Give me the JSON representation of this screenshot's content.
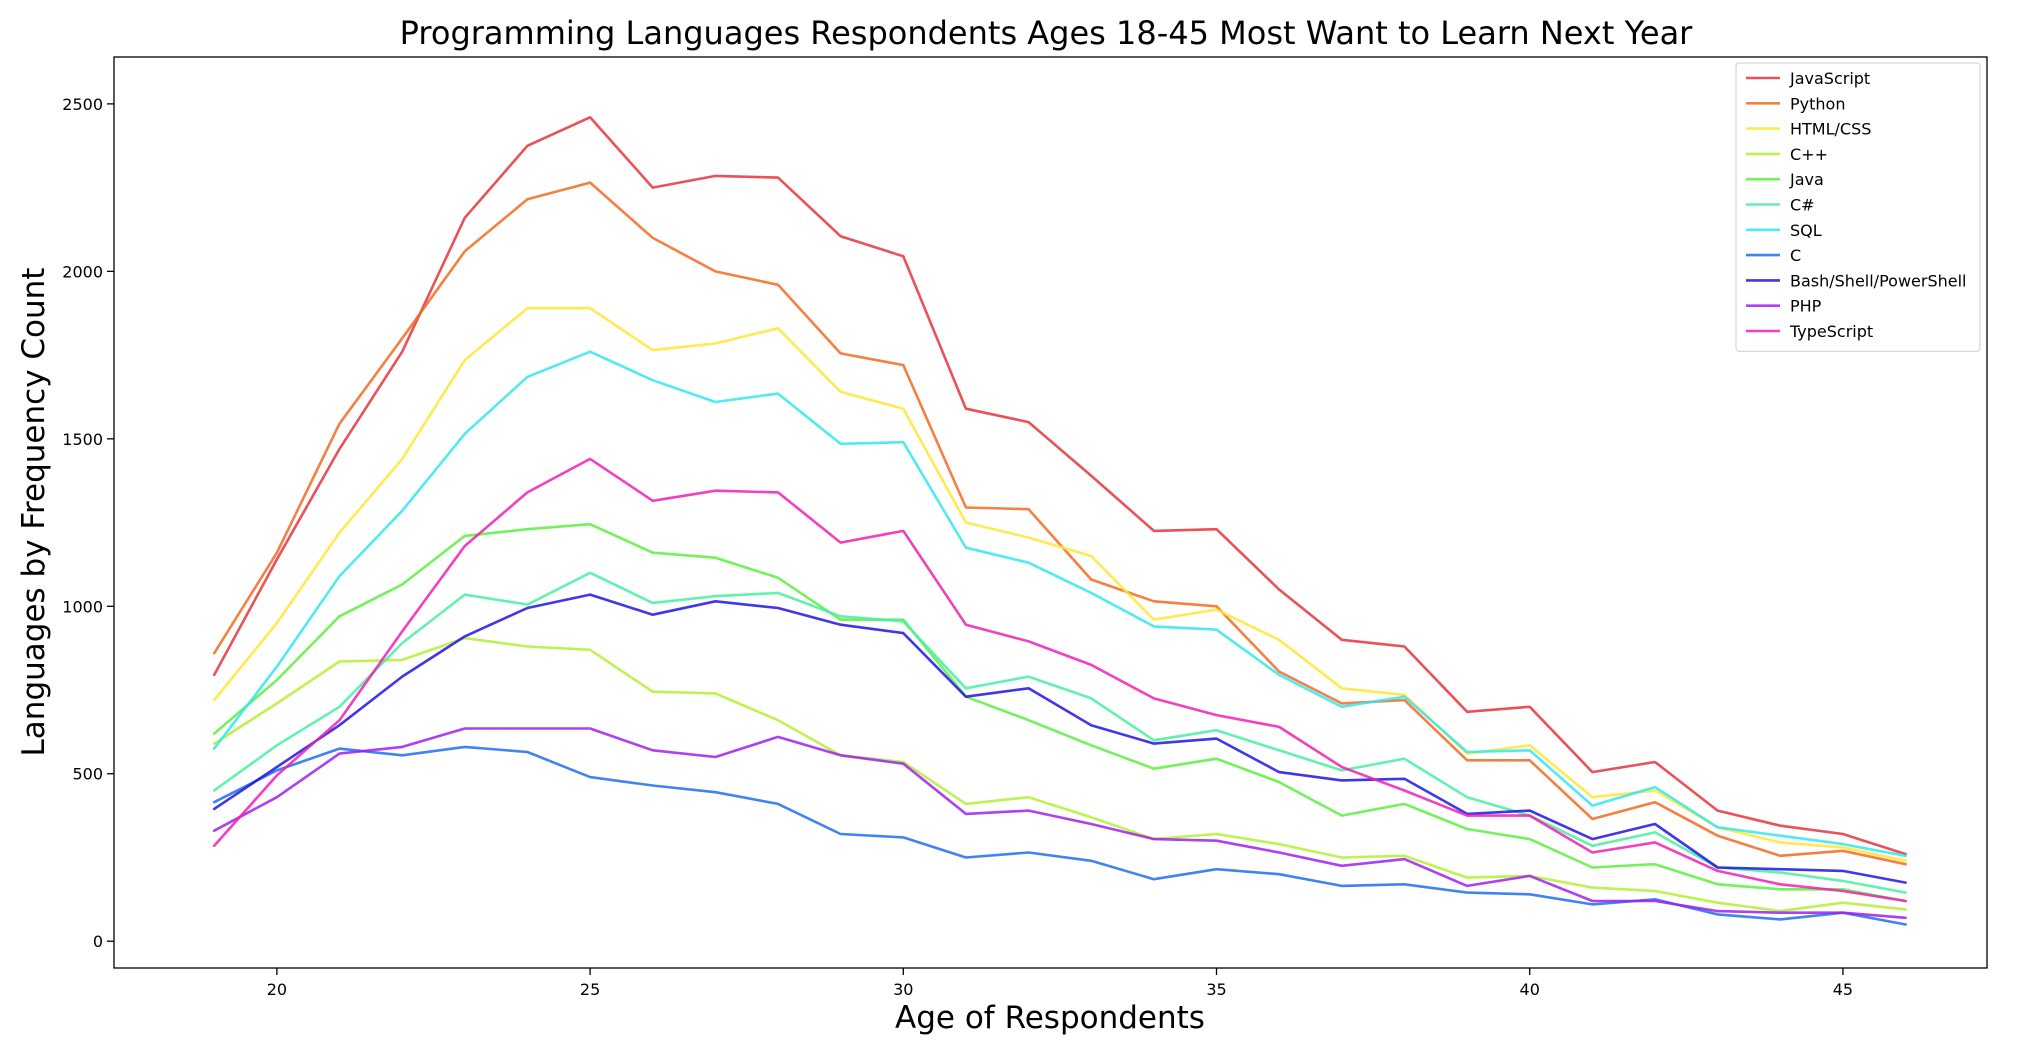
{
  "chart_data": {
    "type": "line",
    "title": "Programming Languages Respondents Ages 18-45 Most Want to Learn Next Year",
    "xlabel": "Age of Respondents",
    "ylabel": "Languages by Frequency Count",
    "xlim": [
      17.4,
      47.3
    ],
    "ylim": [
      -80,
      2640
    ],
    "xticks": [
      20,
      25,
      30,
      35,
      40,
      45
    ],
    "yticks": [
      0,
      500,
      1000,
      1500,
      2000,
      2500
    ],
    "grid": false,
    "legend_position": "top-right",
    "x": [
      19,
      20,
      21,
      22,
      23,
      24,
      25,
      26,
      27,
      28,
      29,
      30,
      31,
      32,
      33,
      34,
      35,
      36,
      37,
      38,
      39,
      40,
      41,
      42,
      43,
      44,
      45,
      46
    ],
    "series": [
      {
        "name": "JavaScript",
        "color": "#e6323c",
        "values": [
          795,
          1140,
          1470,
          1760,
          2160,
          2375,
          2460,
          2250,
          2285,
          2280,
          2105,
          2045,
          1590,
          1550,
          1390,
          1225,
          1230,
          1050,
          900,
          880,
          685,
          700,
          505,
          535,
          390,
          345,
          320,
          260
        ]
      },
      {
        "name": "Python",
        "color": "#f26a21",
        "values": [
          860,
          1160,
          1545,
          1800,
          2060,
          2215,
          2265,
          2100,
          2000,
          1960,
          1755,
          1720,
          1295,
          1290,
          1080,
          1015,
          1000,
          805,
          710,
          720,
          540,
          540,
          365,
          415,
          315,
          255,
          270,
          230
        ]
      },
      {
        "name": "HTML/CSS",
        "color": "#ffe632",
        "values": [
          720,
          950,
          1220,
          1440,
          1735,
          1890,
          1890,
          1765,
          1785,
          1830,
          1640,
          1590,
          1250,
          1205,
          1150,
          960,
          990,
          900,
          755,
          735,
          560,
          585,
          430,
          450,
          340,
          295,
          280,
          240
        ]
      },
      {
        "name": "C++",
        "color": "#b4f032",
        "values": [
          590,
          710,
          835,
          840,
          905,
          880,
          870,
          745,
          740,
          660,
          555,
          535,
          410,
          430,
          370,
          305,
          320,
          290,
          250,
          255,
          190,
          195,
          160,
          150,
          115,
          90,
          115,
          95
        ]
      },
      {
        "name": "Java",
        "color": "#5af03c",
        "values": [
          620,
          780,
          970,
          1065,
          1210,
          1230,
          1245,
          1160,
          1145,
          1085,
          960,
          960,
          730,
          660,
          585,
          515,
          545,
          475,
          375,
          410,
          335,
          305,
          220,
          230,
          170,
          155,
          155,
          120
        ]
      },
      {
        "name": "C#",
        "color": "#46f0a0",
        "values": [
          450,
          585,
          700,
          890,
          1035,
          1005,
          1100,
          1010,
          1030,
          1040,
          970,
          955,
          755,
          790,
          725,
          600,
          630,
          570,
          510,
          545,
          430,
          375,
          285,
          325,
          220,
          205,
          180,
          145
        ]
      },
      {
        "name": "SQL",
        "color": "#32e6f0",
        "values": [
          575,
          820,
          1090,
          1285,
          1515,
          1685,
          1760,
          1675,
          1610,
          1635,
          1485,
          1490,
          1175,
          1130,
          1040,
          940,
          930,
          795,
          700,
          730,
          565,
          570,
          405,
          460,
          340,
          315,
          290,
          255
        ]
      },
      {
        "name": "C",
        "color": "#1e6ef0",
        "values": [
          415,
          510,
          575,
          555,
          580,
          565,
          490,
          465,
          445,
          410,
          320,
          310,
          250,
          265,
          240,
          185,
          215,
          200,
          165,
          170,
          145,
          140,
          110,
          125,
          80,
          65,
          85,
          50
        ]
      },
      {
        "name": "Bash/Shell/PowerShell",
        "color": "#1e14e6",
        "values": [
          395,
          520,
          645,
          790,
          910,
          995,
          1035,
          975,
          1015,
          995,
          945,
          920,
          730,
          755,
          645,
          590,
          605,
          505,
          480,
          485,
          380,
          390,
          305,
          350,
          220,
          215,
          210,
          175
        ]
      },
      {
        "name": "PHP",
        "color": "#a01ef0",
        "values": [
          330,
          430,
          560,
          580,
          635,
          635,
          635,
          570,
          550,
          610,
          555,
          530,
          380,
          390,
          350,
          305,
          300,
          265,
          225,
          245,
          165,
          195,
          120,
          120,
          90,
          85,
          85,
          70
        ]
      },
      {
        "name": "TypeScript",
        "color": "#f01eb4",
        "values": [
          285,
          495,
          660,
          925,
          1180,
          1340,
          1440,
          1315,
          1345,
          1340,
          1190,
          1225,
          945,
          895,
          825,
          725,
          675,
          640,
          520,
          450,
          375,
          375,
          265,
          295,
          210,
          170,
          150,
          120
        ]
      }
    ]
  }
}
